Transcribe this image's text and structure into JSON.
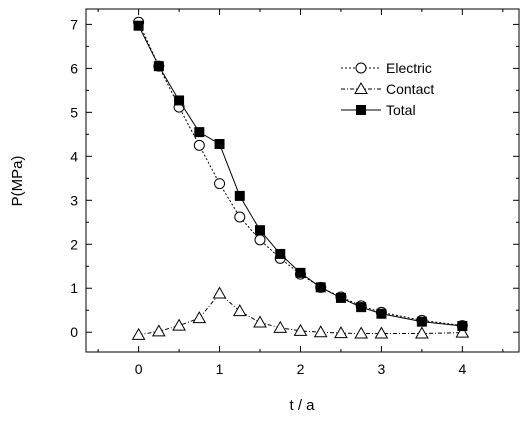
{
  "chart_data": {
    "type": "line",
    "title": "",
    "xlabel": "t / a",
    "ylabel": "P(MPa)",
    "xlim": [
      -0.65,
      4.7
    ],
    "ylim": [
      -0.45,
      7.35
    ],
    "xticks": [
      "0",
      "1",
      "2",
      "3",
      "4"
    ],
    "yticks": [
      "0",
      "1",
      "2",
      "3",
      "4",
      "5",
      "6",
      "7"
    ],
    "x_tick_values": [
      0,
      1,
      2,
      3,
      4
    ],
    "y_tick_values": [
      0,
      1,
      2,
      3,
      4,
      5,
      6,
      7
    ],
    "x_minor_tick_values": [
      -0.5,
      0.5,
      1.5,
      2.5,
      3.5,
      4.5
    ],
    "y_minor_tick_values": [
      0.5,
      1.5,
      2.5,
      3.5,
      4.5,
      5.5,
      6.5
    ],
    "grid": false,
    "legend_position": "top-right",
    "series": [
      {
        "name": "Electric",
        "marker": "circle-open",
        "line_style": "dotted",
        "x": [
          0,
          0.25,
          0.5,
          0.75,
          1,
          1.25,
          1.5,
          1.75,
          2,
          2.25,
          2.5,
          2.75,
          3,
          3.5,
          4
        ],
        "y": [
          7.05,
          6.05,
          5.12,
          4.25,
          3.38,
          2.62,
          2.1,
          1.68,
          1.32,
          1.02,
          0.8,
          0.6,
          0.45,
          0.27,
          0.15
        ]
      },
      {
        "name": "Contact",
        "marker": "triangle-open",
        "line_style": "dash-dot",
        "x": [
          0,
          0.25,
          0.5,
          0.75,
          1,
          1.25,
          1.5,
          1.75,
          2,
          2.25,
          2.5,
          2.75,
          3,
          3.5,
          4
        ],
        "y": [
          -0.06,
          0.02,
          0.15,
          0.32,
          0.88,
          0.48,
          0.22,
          0.1,
          0.03,
          0.0,
          -0.02,
          -0.03,
          -0.03,
          -0.03,
          -0.01
        ]
      },
      {
        "name": "Total",
        "marker": "square-filled",
        "line_style": "solid",
        "x": [
          0,
          0.25,
          0.5,
          0.75,
          1,
          1.25,
          1.5,
          1.75,
          2,
          2.25,
          2.5,
          2.75,
          3,
          3.5,
          4
        ],
        "y": [
          6.97,
          6.05,
          5.27,
          4.55,
          4.28,
          3.1,
          2.32,
          1.78,
          1.35,
          1.02,
          0.78,
          0.57,
          0.42,
          0.24,
          0.14
        ]
      }
    ]
  }
}
